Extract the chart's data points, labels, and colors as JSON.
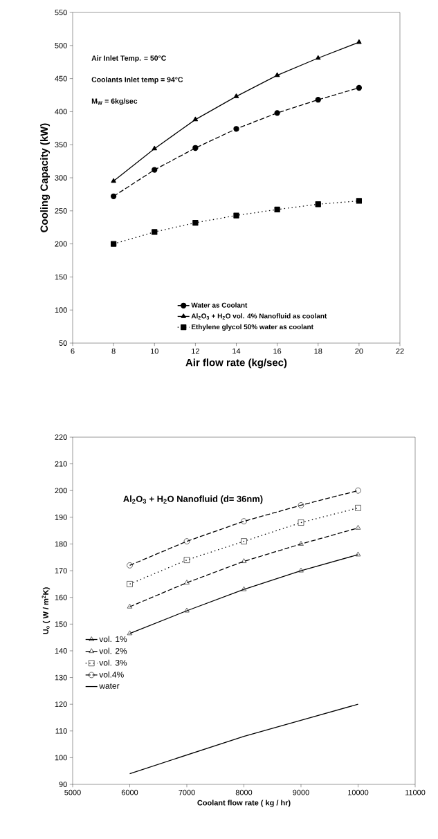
{
  "chart_data": [
    {
      "type": "line",
      "xlabel": "Air flow rate (kg/sec)",
      "ylabel": "Cooling Capacity (kW)",
      "x": [
        8,
        10,
        12,
        14,
        16,
        18,
        20
      ],
      "series": [
        {
          "name": "Water as Coolant",
          "color": "#000000",
          "marker": "circle",
          "line_style": "dashed",
          "values": [
            272,
            312,
            345,
            374,
            398,
            418,
            436
          ]
        },
        {
          "name": "Al$_{2}$O$_{3}$ + H$_{2}$O vol. 4% Nanofluid as coolant",
          "color": "#000000",
          "marker": "triangle",
          "line_style": "solid",
          "values": [
            295,
            344,
            388,
            423,
            455,
            481,
            505
          ]
        },
        {
          "name": "Ethylene glycol 50% water as coolant",
          "color": "#000000",
          "marker": "square",
          "line_style": "dotted",
          "values": [
            200,
            218,
            232,
            243,
            252,
            260,
            265
          ]
        }
      ],
      "xlim": [
        6,
        22
      ],
      "xticks": [
        6,
        8,
        10,
        12,
        14,
        16,
        18,
        20,
        22
      ],
      "ylim": [
        50,
        550
      ],
      "yticks": [
        50,
        100,
        150,
        200,
        250,
        300,
        350,
        400,
        450,
        500,
        550
      ],
      "annotations": [
        "Air Inlet Temp. = 50°C",
        "Coolants Inlet temp = 94°C",
        "M$_{W}$ = 6kg/sec"
      ],
      "legend": "bottom"
    },
    {
      "type": "line",
      "xlabel": "Coolant flow rate ( kg / hr)",
      "ylabel": "U$_{o}$ ( W / m$^{2}$K)",
      "x": [
        6000,
        7000,
        8000,
        9000,
        10000
      ],
      "series": [
        {
          "name": "vol. 1%",
          "color": "#000000",
          "marker": "triangle",
          "line_style": "solid",
          "values": [
            146.5,
            155,
            163,
            170,
            176
          ]
        },
        {
          "name": "vol. 2%",
          "color": "#000000",
          "marker": "triangle",
          "line_style": "dashed",
          "values": [
            156.5,
            165.5,
            173.5,
            180,
            186
          ]
        },
        {
          "name": "vol. 3%",
          "color": "#000000",
          "marker": "square",
          "line_style": "dotted",
          "values": [
            165,
            174,
            181,
            188,
            193.5
          ]
        },
        {
          "name": "vol.4%",
          "color": "#000000",
          "marker": "circle",
          "line_style": "dashed",
          "values": [
            172,
            181,
            188.5,
            194.5,
            200
          ]
        },
        {
          "name": "water",
          "color": "#000000",
          "marker": "none",
          "line_style": "solid",
          "values": [
            94,
            101,
            108,
            114,
            120
          ]
        }
      ],
      "xlim": [
        5000,
        11000
      ],
      "xticks": [
        5000,
        6000,
        7000,
        8000,
        9000,
        10000,
        11000
      ],
      "ylim": [
        90,
        220
      ],
      "yticks": [
        90,
        100,
        110,
        120,
        130,
        140,
        150,
        160,
        170,
        180,
        190,
        200,
        210,
        220
      ],
      "annotations": [
        "Al$_{2}$O$_{3}$ + H$_{2}$O Nanofluid (d= 36nm)"
      ],
      "legend": "left"
    }
  ]
}
